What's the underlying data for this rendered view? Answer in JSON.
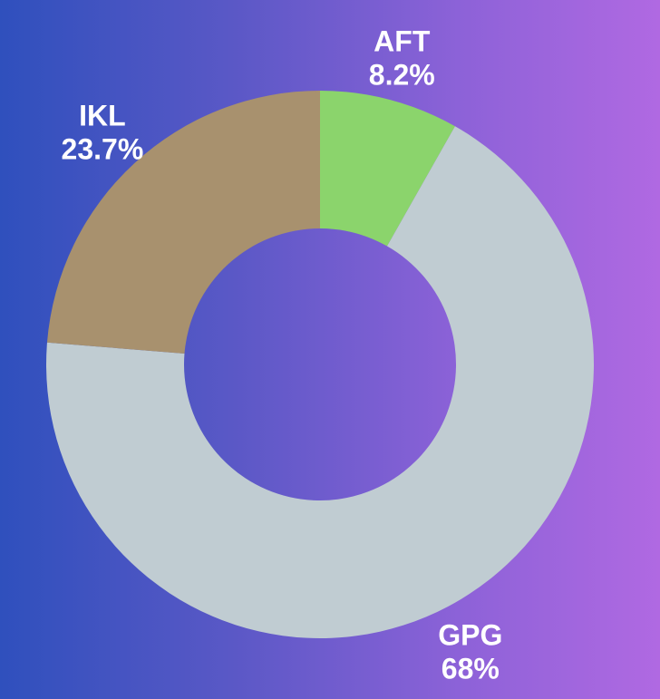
{
  "chart_data": {
    "type": "pie",
    "variant": "donut",
    "categories": [
      "AFT",
      "GPG",
      "IKL"
    ],
    "values": [
      8.2,
      68,
      23.7
    ],
    "value_labels": [
      "8.2%",
      "68%",
      "23.7%"
    ],
    "colors": [
      "#8bd46c",
      "#c0ccd2",
      "#a8916e"
    ],
    "label_color": "#ffffff",
    "legend": "none"
  }
}
